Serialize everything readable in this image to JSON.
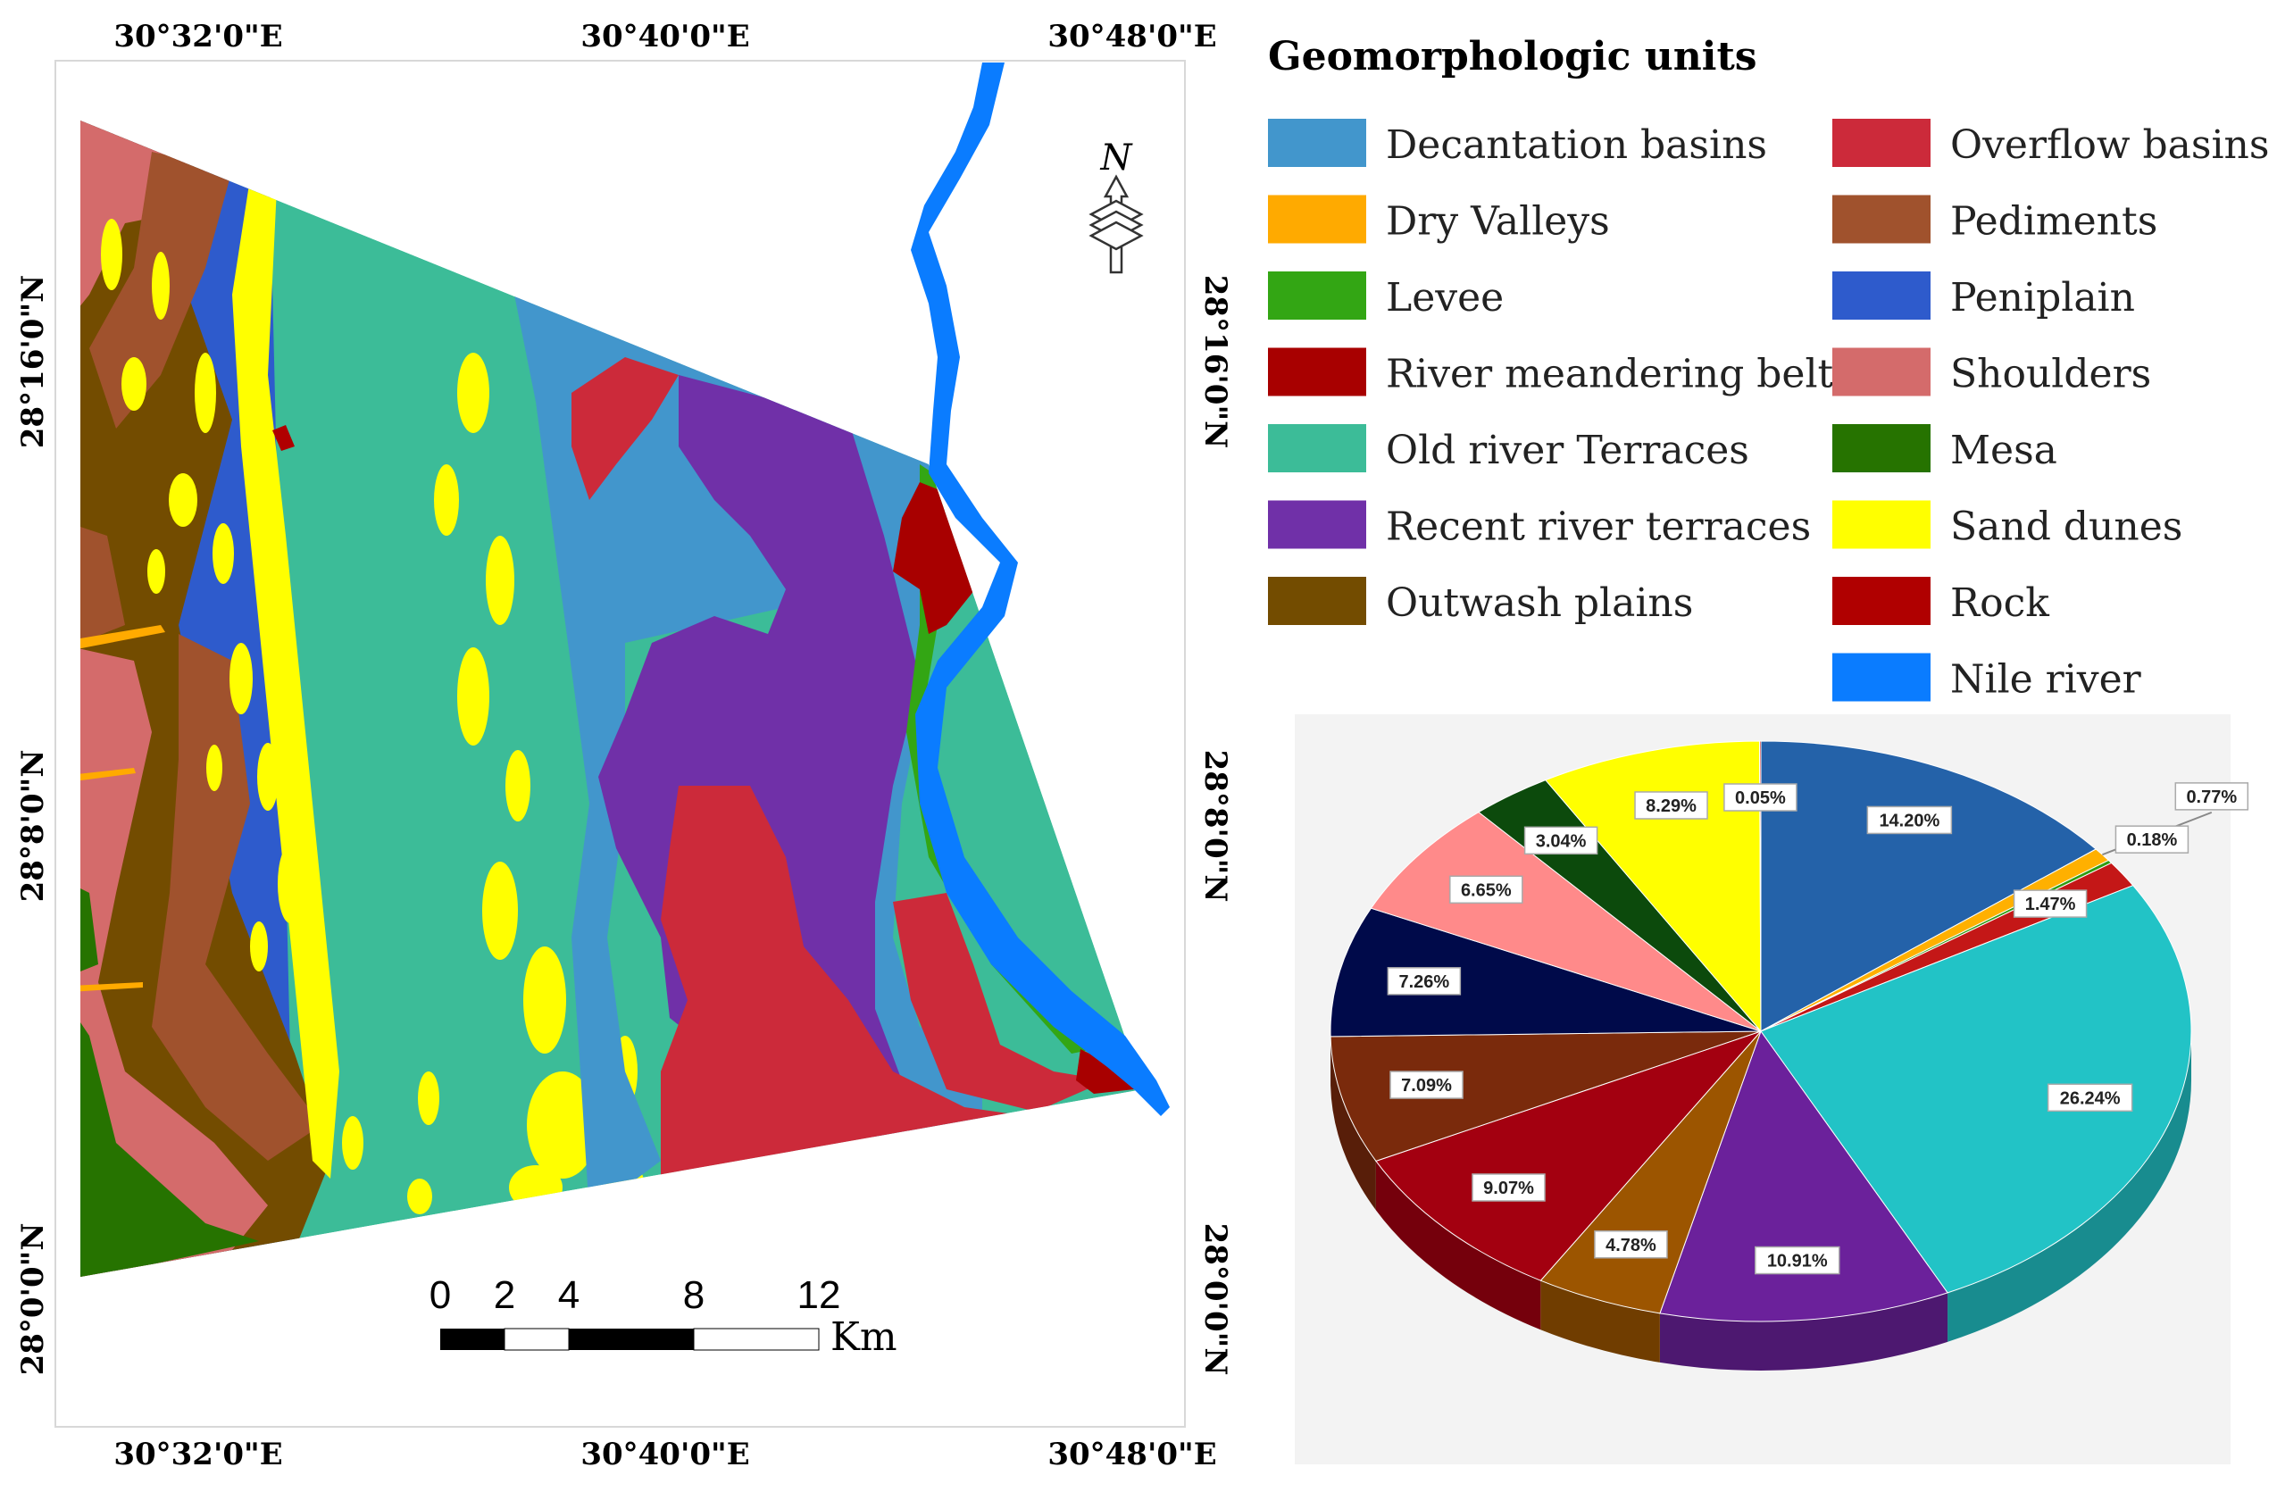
{
  "map": {
    "coords": {
      "top": [
        "30°32'0\"E",
        "30°40'0\"E",
        "30°48'0\"E"
      ],
      "bottom": [
        "30°32'0\"E",
        "30°40'0\"E",
        "30°48'0\"E"
      ],
      "left": [
        "28°16'0\"N",
        "28°8'0\"N",
        "28°0'0\"N"
      ],
      "right": [
        "28°16'0\"N",
        "28°8'0\"N",
        "28°0'0\"N"
      ]
    },
    "north_label": "N",
    "scale": {
      "ticks": [
        "0",
        "2",
        "4",
        "8",
        "12"
      ],
      "unit": "Km"
    }
  },
  "legend": {
    "title": "Geomorphologic units",
    "items": [
      {
        "label": "Decantation basins",
        "color": "#4296cc"
      },
      {
        "label": "Dry Valleys",
        "color": "#ffaa00"
      },
      {
        "label": "Levee",
        "color": "#33a614"
      },
      {
        "label": "River meandering belt",
        "color": "#a80000"
      },
      {
        "label": "Old river Terraces",
        "color": "#3cbc98"
      },
      {
        "label": "Recent river terraces",
        "color": "#7030a8"
      },
      {
        "label": "Outwash plains",
        "color": "#734c00"
      },
      {
        "label": "Overflow basins",
        "color": "#cc2a3a"
      },
      {
        "label": "Pediments",
        "color": "#a0522d"
      },
      {
        "label": "Peniplain",
        "color": "#2e5bcc"
      },
      {
        "label": "Shoulders",
        "color": "#d46b6b"
      },
      {
        "label": "Mesa",
        "color": "#267300"
      },
      {
        "label": "Sand dunes",
        "color": "#ffff00"
      },
      {
        "label": "Rock",
        "color": "#b00000"
      },
      {
        "label": "Nile river",
        "color": "#0a7cff"
      }
    ]
  },
  "chart_data": {
    "type": "pie",
    "start_angle_deg": 90,
    "direction": "clockwise",
    "slices": [
      {
        "value": 14.2,
        "label": "14.20%",
        "color": "#2462a9"
      },
      {
        "value": 0.77,
        "label": "0.77%",
        "color": "#ffb000"
      },
      {
        "value": 0.18,
        "label": "0.18%",
        "color": "#2e9c10"
      },
      {
        "value": 1.47,
        "label": "1.47%",
        "color": "#c41717"
      },
      {
        "value": 26.24,
        "label": "26.24%",
        "color": "#22c3c6"
      },
      {
        "value": 10.91,
        "label": "10.91%",
        "color": "#6b219b"
      },
      {
        "value": 4.78,
        "label": "4.78%",
        "color": "#9c5500"
      },
      {
        "value": 9.07,
        "label": "9.07%",
        "color": "#a30010"
      },
      {
        "value": 7.09,
        "label": "7.09%",
        "color": "#7a2a0c"
      },
      {
        "value": 7.26,
        "label": "7.26%",
        "color": "#000a4a"
      },
      {
        "value": 6.65,
        "label": "6.65%",
        "color": "#ff8a8a"
      },
      {
        "value": 3.04,
        "label": "3.04%",
        "color": "#0c4a0c"
      },
      {
        "value": 8.29,
        "label": "8.29%",
        "color": "#ffff00"
      },
      {
        "value": 0.05,
        "label": "0.05%",
        "color": "#c00000"
      }
    ]
  }
}
